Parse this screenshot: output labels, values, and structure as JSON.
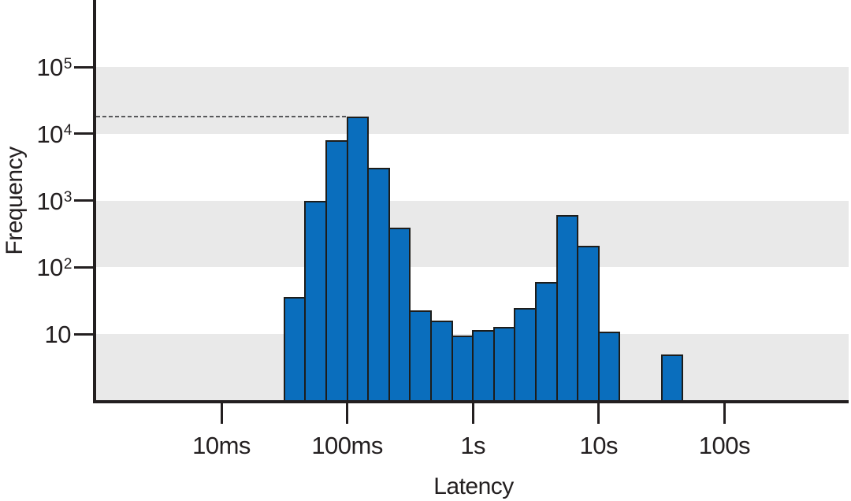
{
  "chart_data": {
    "type": "bar",
    "subtype": "histogram",
    "title": "",
    "xlabel": "Latency",
    "ylabel": "Frequency",
    "x_scale": "log",
    "y_scale": "log",
    "xlim_ms": [
      1,
      1000000
    ],
    "ylim": [
      1,
      1000000
    ],
    "x_ticks": [
      {
        "ms": 10,
        "label": "10ms"
      },
      {
        "ms": 100,
        "label": "100ms"
      },
      {
        "ms": 1000,
        "label": "1s"
      },
      {
        "ms": 10000,
        "label": "10s"
      },
      {
        "ms": 100000,
        "label": "100s"
      }
    ],
    "y_ticks": [
      {
        "value": 10,
        "base": "10",
        "exp": ""
      },
      {
        "value": 100,
        "base": "10",
        "exp": "2"
      },
      {
        "value": 1000,
        "base": "10",
        "exp": "3"
      },
      {
        "value": 10000,
        "base": "10",
        "exp": "4"
      },
      {
        "value": 100000,
        "base": "10",
        "exp": "5"
      }
    ],
    "bin_edges_ms": [
      31.6,
      46.4,
      68.1,
      100,
      146.8,
      215.4,
      316.2,
      464.2,
      681.3,
      1000,
      1467.8,
      2154.4,
      3162.3,
      4641.6,
      6812.9,
      10000,
      14678,
      21544,
      31623,
      46416
    ],
    "counts": [
      36,
      1000,
      8000,
      18000,
      3100,
      390,
      23,
      16,
      9.5,
      11.5,
      13,
      25,
      60,
      600,
      210,
      11,
      0,
      0,
      5
    ],
    "dashed_reference_line": {
      "value": 18000,
      "note": "horizontal dashed line at height of tallest bar"
    },
    "shaded_bands": [
      [
        1,
        10
      ],
      [
        100,
        1000
      ],
      [
        10000,
        100000
      ]
    ],
    "grid": "off",
    "legend": "none",
    "colors": {
      "bar_fill": "#0a6ebd",
      "bar_stroke": "#1d1d1b",
      "axis": "#231f20",
      "band": "#e9e9e9",
      "dashed": "#58595b",
      "text": "#231f20",
      "background": "#ffffff"
    }
  }
}
